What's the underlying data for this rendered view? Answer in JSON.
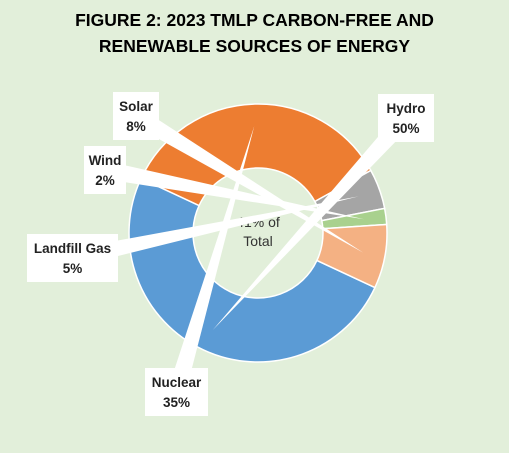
{
  "chart_data": {
    "type": "pie",
    "title_lines": [
      "FIGURE 2: 2023 TMLP CARBON-FREE AND",
      "RENEWABLE SOURCES OF ENERGY"
    ],
    "center_label": [
      "41% of",
      "Total"
    ],
    "donut": true,
    "categories": [
      "Hydro",
      "Nuclear",
      "Landfill Gas",
      "Wind",
      "Solar"
    ],
    "values": [
      50,
      35,
      5,
      2,
      8
    ],
    "value_labels": [
      "50%",
      "35%",
      "5%",
      "2%",
      "8%"
    ],
    "colors": [
      "#5b9bd5",
      "#ed7d31",
      "#a5a5a5",
      "#a9d18e",
      "#f4b183"
    ],
    "legend": "none",
    "label_style": "callouts"
  },
  "colors": {
    "background": "#e2efda",
    "slice_border": "#ffffff",
    "callout_fill": "#ffffff"
  }
}
